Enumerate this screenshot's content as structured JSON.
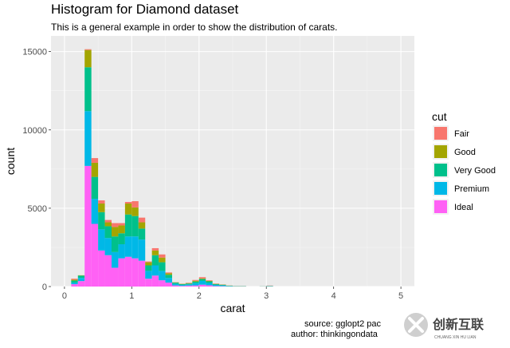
{
  "chart_data": {
    "type": "bar",
    "stacked": true,
    "title": "Histogram for Diamond dataset",
    "subtitle": "This is a general example in order to show the distribution of carats.",
    "xlabel": "carat",
    "ylabel": "count",
    "xlim": [
      -0.2,
      5.2
    ],
    "ylim": [
      0,
      16000
    ],
    "x_ticks": [
      0,
      1,
      2,
      3,
      4,
      5
    ],
    "y_ticks": [
      0,
      5000,
      10000,
      15000
    ],
    "bin_width": 0.1,
    "grid": true,
    "legend_title": "cut",
    "legend_position": "right",
    "x": [
      0.15,
      0.25,
      0.35,
      0.45,
      0.55,
      0.65,
      0.75,
      0.85,
      0.95,
      1.05,
      1.15,
      1.25,
      1.35,
      1.45,
      1.55,
      1.65,
      1.75,
      1.85,
      1.95,
      2.05,
      2.15,
      2.25,
      2.35,
      2.45,
      2.55,
      2.65,
      2.95,
      3.05
    ],
    "series": [
      {
        "name": "Ideal",
        "color": "#FF61F5",
        "values": [
          150,
          350,
          7700,
          4000,
          2300,
          2000,
          1200,
          1800,
          1900,
          1800,
          1650,
          500,
          700,
          400,
          250,
          70,
          40,
          60,
          70,
          120,
          80,
          30,
          20,
          10,
          5,
          5,
          2,
          10
        ]
      },
      {
        "name": "Premium",
        "color": "#00B8E7",
        "values": [
          100,
          200,
          3500,
          1600,
          1350,
          1100,
          1000,
          900,
          1300,
          1400,
          1350,
          500,
          650,
          600,
          300,
          100,
          60,
          80,
          150,
          240,
          150,
          70,
          50,
          20,
          10,
          10,
          5,
          20
        ]
      },
      {
        "name": "Very Good",
        "color": "#00C08B",
        "values": [
          130,
          150,
          2800,
          1400,
          1100,
          750,
          1000,
          700,
          1400,
          1300,
          700,
          350,
          650,
          550,
          200,
          80,
          50,
          50,
          100,
          120,
          100,
          50,
          40,
          20,
          10,
          10,
          5,
          10
        ]
      },
      {
        "name": "Good",
        "color": "#A3A500",
        "values": [
          60,
          20,
          1100,
          900,
          550,
          250,
          600,
          500,
          700,
          550,
          400,
          200,
          300,
          300,
          100,
          20,
          20,
          30,
          50,
          40,
          30,
          20,
          15,
          10,
          5,
          5,
          3,
          10
        ]
      },
      {
        "name": "Fair",
        "color": "#F8766D",
        "values": [
          60,
          0,
          50,
          300,
          200,
          150,
          250,
          150,
          100,
          400,
          300,
          50,
          150,
          200,
          50,
          10,
          10,
          20,
          50,
          80,
          40,
          20,
          10,
          5,
          5,
          5,
          2,
          10
        ]
      }
    ],
    "legend_order": [
      "Fair",
      "Good",
      "Very Good",
      "Premium",
      "Ideal"
    ]
  },
  "caption": {
    "line1": "source: gglopt2 pac",
    "line2": "author: thinkingondata"
  },
  "watermark": {
    "icon": "x-logo-icon",
    "text": "创新互联",
    "sub": "CHUANG XIN HU LIAN"
  },
  "colors": {
    "panel": "#EBEBEB",
    "grid_major": "#FFFFFF",
    "grid_minor": "#F5F5F5"
  }
}
